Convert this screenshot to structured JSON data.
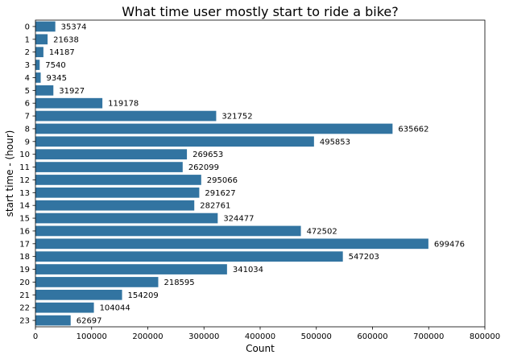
{
  "chart_data": {
    "type": "bar",
    "orientation": "horizontal",
    "title": "What time user mostly start to ride a bike?",
    "xlabel": "Count",
    "ylabel": "start time - (hour)",
    "categories": [
      "0",
      "1",
      "2",
      "3",
      "4",
      "5",
      "6",
      "7",
      "8",
      "9",
      "10",
      "11",
      "12",
      "13",
      "14",
      "15",
      "16",
      "17",
      "18",
      "19",
      "20",
      "21",
      "22",
      "23"
    ],
    "values": [
      35374,
      21638,
      14187,
      7540,
      9345,
      31927,
      119178,
      321752,
      635662,
      495853,
      269653,
      262099,
      295066,
      291627,
      282761,
      324477,
      472502,
      699476,
      547203,
      341034,
      218595,
      154209,
      104044,
      62697
    ],
    "data_labels": [
      "35374",
      "21638",
      "14187",
      "7540",
      "9345",
      "31927",
      "119178",
      "321752",
      "635662",
      "495853",
      "269653",
      "262099",
      "295066",
      "291627",
      "282761",
      "324477",
      "472502",
      "699476",
      "547203",
      "341034",
      "218595",
      "154209",
      "104044",
      "62697"
    ],
    "xlim": [
      0,
      800000
    ],
    "xticks": [
      0,
      100000,
      200000,
      300000,
      400000,
      500000,
      600000,
      700000,
      800000
    ],
    "xtick_labels": [
      "0",
      "100000",
      "200000",
      "300000",
      "400000",
      "500000",
      "600000",
      "700000",
      "800000"
    ],
    "grid": false,
    "bar_color": "#3274a1"
  }
}
